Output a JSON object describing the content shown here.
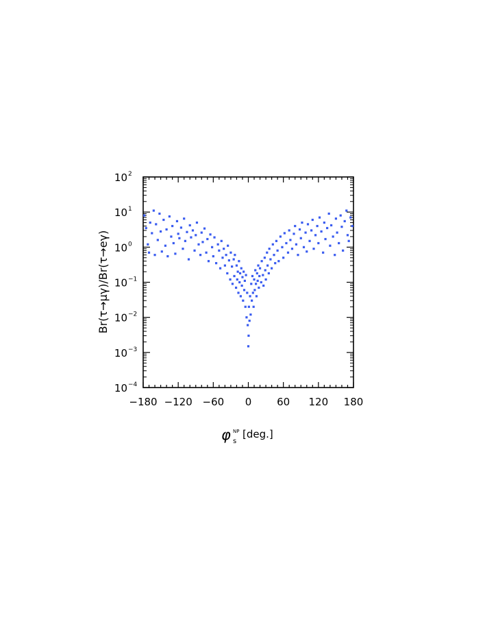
{
  "chart_data": {
    "type": "scatter",
    "title": "",
    "xlabel": {
      "symbol": "φ",
      "sub": "s",
      "sup": "NP",
      "unit": "[deg.]"
    },
    "ylabel": "Br(τ→μγ)/Br(τ→eγ)",
    "xlim": [
      -180,
      180
    ],
    "ylim": [
      0.0001,
      100
    ],
    "yscale": "log",
    "grid": false,
    "legend": "none",
    "marker_color": "#3a5cf0",
    "x_ticks": [
      -180,
      -120,
      -60,
      0,
      60,
      120,
      180
    ],
    "x_tick_labels": [
      "−180",
      "−120",
      "−60",
      "0",
      "60",
      "120",
      "180"
    ],
    "y_ticks": [
      {
        "value": 100,
        "base": "10",
        "exp": "2"
      },
      {
        "value": 10,
        "base": "10",
        "exp": "1"
      },
      {
        "value": 1,
        "base": "10",
        "exp": "0"
      },
      {
        "value": 0.1,
        "base": "10",
        "exp": "−1"
      },
      {
        "value": 0.01,
        "base": "10",
        "exp": "−2"
      },
      {
        "value": 0.001,
        "base": "10",
        "exp": "−3"
      },
      {
        "value": 0.0001,
        "base": "10",
        "exp": "−4"
      }
    ],
    "series": [
      {
        "points": [
          [
            -178,
            8
          ],
          [
            -175,
            3.5
          ],
          [
            -172,
            1.2
          ],
          [
            -170,
            0.7
          ],
          [
            -168,
            5
          ],
          [
            -165,
            2.5
          ],
          [
            -162,
            11
          ],
          [
            -160,
            0.6
          ],
          [
            -158,
            4.5
          ],
          [
            -155,
            1.6
          ],
          [
            -152,
            9
          ],
          [
            -150,
            2.8
          ],
          [
            -148,
            0.75
          ],
          [
            -145,
            6
          ],
          [
            -142,
            1.1
          ],
          [
            -140,
            3.2
          ],
          [
            -138,
            0.55
          ],
          [
            -135,
            7.5
          ],
          [
            -132,
            2
          ],
          [
            -130,
            4
          ],
          [
            -128,
            1.3
          ],
          [
            -125,
            0.65
          ],
          [
            -122,
            5.5
          ],
          [
            -120,
            2.4
          ],
          [
            -118,
            1.8
          ],
          [
            -115,
            3.6
          ],
          [
            -112,
            0.9
          ],
          [
            -110,
            6.5
          ],
          [
            -108,
            1.5
          ],
          [
            -105,
            2.7
          ],
          [
            -102,
            0.45
          ],
          [
            -100,
            4.2
          ],
          [
            -98,
            1.9
          ],
          [
            -95,
            3
          ],
          [
            -92,
            0.8
          ],
          [
            -90,
            2.2
          ],
          [
            -88,
            5
          ],
          [
            -85,
            1.2
          ],
          [
            -82,
            0.6
          ],
          [
            -80,
            2.6
          ],
          [
            -78,
            1.4
          ],
          [
            -75,
            3.4
          ],
          [
            -72,
            0.7
          ],
          [
            -70,
            1.7
          ],
          [
            -68,
            0.4
          ],
          [
            -65,
            2.3
          ],
          [
            -62,
            1
          ],
          [
            -60,
            0.55
          ],
          [
            -58,
            1.9
          ],
          [
            -55,
            0.35
          ],
          [
            -52,
            1.2
          ],
          [
            -50,
            0.8
          ],
          [
            -48,
            0.25
          ],
          [
            -46,
            1.5
          ],
          [
            -44,
            0.5
          ],
          [
            -42,
            0.9
          ],
          [
            -40,
            0.3
          ],
          [
            -38,
            0.6
          ],
          [
            -36,
            0.18
          ],
          [
            -35,
            1.1
          ],
          [
            -33,
            0.42
          ],
          [
            -31,
            0.12
          ],
          [
            -30,
            0.7
          ],
          [
            -28,
            0.28
          ],
          [
            -27,
            0.09
          ],
          [
            -25,
            0.45
          ],
          [
            -24,
            0.15
          ],
          [
            -23,
            0.6
          ],
          [
            -21,
            0.07
          ],
          [
            -20,
            0.3
          ],
          [
            -19,
            0.12
          ],
          [
            -18,
            0.2
          ],
          [
            -17,
            0.05
          ],
          [
            -16,
            0.4
          ],
          [
            -15,
            0.1
          ],
          [
            -14,
            0.18
          ],
          [
            -13,
            0.04
          ],
          [
            -12,
            0.25
          ],
          [
            -11,
            0.08
          ],
          [
            -10,
            0.14
          ],
          [
            -9,
            0.03
          ],
          [
            -8,
            0.2
          ],
          [
            -7,
            0.06
          ],
          [
            -6,
            0.11
          ],
          [
            -5,
            0.02
          ],
          [
            -4,
            0.16
          ],
          [
            -3,
            0.01
          ],
          [
            -2,
            0.05
          ],
          [
            -1,
            0.006
          ],
          [
            0,
            0.0015
          ],
          [
            0.5,
            0.003
          ],
          [
            1,
            0.02
          ],
          [
            2,
            0.008
          ],
          [
            3,
            0.04
          ],
          [
            4,
            0.012
          ],
          [
            5,
            0.09
          ],
          [
            6,
            0.03
          ],
          [
            7,
            0.15
          ],
          [
            8,
            0.05
          ],
          [
            9,
            0.02
          ],
          [
            10,
            0.12
          ],
          [
            11,
            0.06
          ],
          [
            12,
            0.22
          ],
          [
            13,
            0.09
          ],
          [
            14,
            0.04
          ],
          [
            15,
            0.18
          ],
          [
            16,
            0.11
          ],
          [
            17,
            0.3
          ],
          [
            18,
            0.07
          ],
          [
            19,
            0.15
          ],
          [
            20,
            0.25
          ],
          [
            22,
            0.1
          ],
          [
            23,
            0.4
          ],
          [
            25,
            0.16
          ],
          [
            26,
            0.08
          ],
          [
            28,
            0.5
          ],
          [
            29,
            0.22
          ],
          [
            30,
            0.12
          ],
          [
            32,
            0.7
          ],
          [
            33,
            0.3
          ],
          [
            35,
            0.18
          ],
          [
            36,
            0.9
          ],
          [
            38,
            0.45
          ],
          [
            40,
            0.25
          ],
          [
            42,
            1.2
          ],
          [
            44,
            0.6
          ],
          [
            46,
            0.35
          ],
          [
            48,
            1.5
          ],
          [
            50,
            0.8
          ],
          [
            52,
            0.4
          ],
          [
            55,
            2
          ],
          [
            58,
            1
          ],
          [
            60,
            0.5
          ],
          [
            62,
            2.5
          ],
          [
            65,
            1.3
          ],
          [
            68,
            0.7
          ],
          [
            70,
            3
          ],
          [
            72,
            1.6
          ],
          [
            75,
            0.9
          ],
          [
            78,
            2.4
          ],
          [
            80,
            4
          ],
          [
            82,
            1.2
          ],
          [
            85,
            0.6
          ],
          [
            88,
            3.2
          ],
          [
            90,
            1.8
          ],
          [
            92,
            5
          ],
          [
            95,
            1
          ],
          [
            98,
            2.6
          ],
          [
            100,
            0.75
          ],
          [
            102,
            4.5
          ],
          [
            105,
            1.5
          ],
          [
            108,
            3
          ],
          [
            110,
            6
          ],
          [
            112,
            0.9
          ],
          [
            115,
            2.2
          ],
          [
            118,
            4
          ],
          [
            120,
            1.3
          ],
          [
            122,
            7
          ],
          [
            125,
            2.8
          ],
          [
            128,
            0.7
          ],
          [
            130,
            5
          ],
          [
            132,
            1.7
          ],
          [
            135,
            3.5
          ],
          [
            138,
            9
          ],
          [
            140,
            1.1
          ],
          [
            142,
            4.2
          ],
          [
            145,
            2
          ],
          [
            148,
            0.6
          ],
          [
            150,
            6.5
          ],
          [
            152,
            2.6
          ],
          [
            155,
            1.3
          ],
          [
            158,
            8
          ],
          [
            160,
            3.8
          ],
          [
            162,
            0.8
          ],
          [
            165,
            5.5
          ],
          [
            168,
            11
          ],
          [
            170,
            2.2
          ],
          [
            172,
            1.5
          ],
          [
            175,
            7
          ],
          [
            178,
            4
          ]
        ]
      }
    ]
  }
}
